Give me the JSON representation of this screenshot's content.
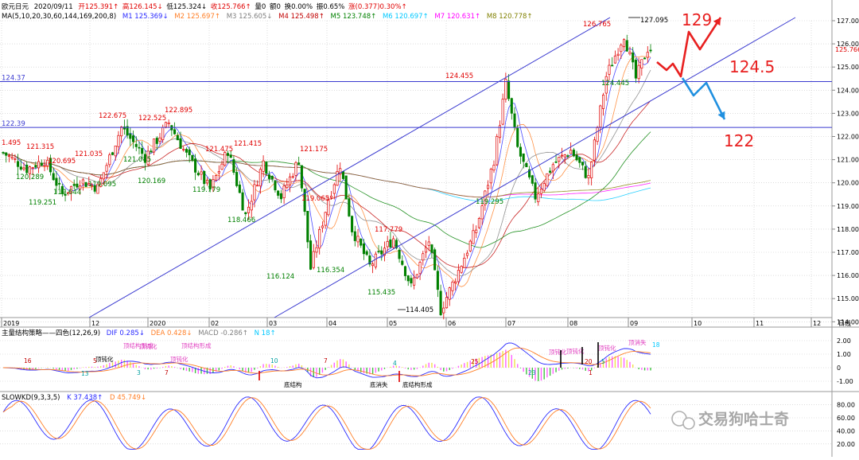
{
  "header": {
    "symbol": "欧元日元",
    "date": "2020/09/11",
    "open": "开125.391↑",
    "high": "高126.145↓",
    "low": "低125.324↓",
    "close": "收125.766↑",
    "volume": "量0",
    "amount": "额0",
    "turnover": "换0.00%",
    "amplitude": "振0.65%",
    "change": "涨(0.377)0.30%↑"
  },
  "ma_legend": {
    "title": "MA(5,10,20,30,60,144,169,200,8)",
    "items": [
      {
        "label": "M1 125.369↓",
        "color": "#2a2aff"
      },
      {
        "label": "M2 125.697↑",
        "color": "#ff7f27"
      },
      {
        "label": "M3 125.605↓",
        "color": "#808080"
      },
      {
        "label": "M4 125.498↑",
        "color": "#c00000"
      },
      {
        "label": "M5 123.748↑",
        "color": "#008000"
      },
      {
        "label": "M6 120.697↑",
        "color": "#00c8ff"
      },
      {
        "label": "M7 120.631↑",
        "color": "#ff00ff"
      },
      {
        "label": "M8 120.778↑",
        "color": "#808000"
      }
    ]
  },
  "macd_legend": {
    "title": "主量结构策略——四色(12,26,9)",
    "items": [
      {
        "label": "DIF 0.285↓",
        "color": "#2a2aff"
      },
      {
        "label": "DEA 0.428↓",
        "color": "#ff7f27"
      },
      {
        "label": "MACD -0.286↑",
        "color": "#808080"
      },
      {
        "label": "N 18↑",
        "color": "#00c8ff"
      }
    ],
    "annotations": [
      "顶结构形成",
      "顶钝化",
      "顶结构形成",
      "顶钝化",
      "顶钝化",
      "底结构",
      "底消失",
      "底结构形成",
      "顶钝化",
      "顶钝化",
      "顶钝化",
      "顶消失"
    ],
    "counters": [
      "16",
      "13",
      "5",
      "3",
      "7",
      "10",
      "7",
      "4",
      "25",
      "23",
      "20",
      "5",
      "1",
      "18"
    ]
  },
  "kd_legend": {
    "title": "SLOWKD(9,3,3,5)",
    "items": [
      {
        "label": "K 37.438↑",
        "color": "#2a2aff"
      },
      {
        "label": "D 45.749↓",
        "color": "#ff7f27"
      }
    ]
  },
  "price_axis": [
    "127.000",
    "126.000",
    "125.000",
    "124.000",
    "123.000",
    "122.000",
    "121.000",
    "120.000",
    "119.000",
    "118.000",
    "117.000",
    "116.000",
    "115.000",
    "114.000"
  ],
  "current_price": "125.766",
  "macd_axis": [
    "2.00",
    "1.00",
    "0",
    "-1.00"
  ],
  "kd_axis": [
    "80.00",
    "60.00",
    "40.00",
    "20.00"
  ],
  "time_axis": [
    "2019",
    "12",
    "2020",
    "02",
    "03",
    "04",
    "05",
    "06",
    "07",
    "08",
    "09",
    "10",
    "11",
    "12",
    "日线"
  ],
  "levels": [
    {
      "label": "124.37",
      "value": 124.37
    },
    {
      "label": "122.39",
      "value": 122.39
    }
  ],
  "price_annotations": [
    {
      "text": "127.095",
      "color": "#000000"
    },
    {
      "text": "126.765",
      "color": "#e00000"
    },
    {
      "text": "124.455",
      "color": "#e00000"
    },
    {
      "text": "124.445",
      "color": "#008000"
    },
    {
      "text": "122.895",
      "color": "#e00000"
    },
    {
      "text": "122.675",
      "color": "#e00000"
    },
    {
      "text": "122.525",
      "color": "#e00000"
    },
    {
      "text": "121.475",
      "color": "#e00000"
    },
    {
      "text": "121.415",
      "color": "#e00000"
    },
    {
      "text": "121.175",
      "color": "#e00000"
    },
    {
      "text": "121.045",
      "color": "#008000"
    },
    {
      "text": "121.035",
      "color": "#e00000"
    },
    {
      "text": "121.315",
      "color": "#e00000"
    },
    {
      "text": "1.495",
      "color": "#e00000"
    },
    {
      "text": "120.695",
      "color": "#e00000"
    },
    {
      "text": "120.289",
      "color": "#008000"
    },
    {
      "text": "120.169",
      "color": "#008000"
    },
    {
      "text": "119.095",
      "color": "#008000"
    },
    {
      "text": "119.779",
      "color": "#008000"
    },
    {
      "text": "119.644",
      "color": "#008000"
    },
    {
      "text": "119.251",
      "color": "#008000"
    },
    {
      "text": "119.065",
      "color": "#e00000"
    },
    {
      "text": "119.295",
      "color": "#008000"
    },
    {
      "text": "118.466",
      "color": "#008000"
    },
    {
      "text": "117.779",
      "color": "#e00000"
    },
    {
      "text": "116.354",
      "color": "#008000"
    },
    {
      "text": "116.124",
      "color": "#008000"
    },
    {
      "text": "115.435",
      "color": "#008000"
    },
    {
      "text": "114.405",
      "color": "#000000"
    }
  ],
  "forecast_labels": [
    {
      "text": "129",
      "color": "#e82020"
    },
    {
      "text": "124.5",
      "color": "#e82020"
    },
    {
      "text": "122",
      "color": "#e82020"
    }
  ],
  "watermark": "交易狗哈士奇",
  "colors": {
    "up": "#e00000",
    "down": "#008000",
    "channel": "#3a3ad0",
    "forecast_up": "#e82020",
    "forecast_down": "#2090e0",
    "grid": "#c8c8c8"
  },
  "chart_data": [
    {
      "type": "candlestick",
      "title": "欧元日元 日线",
      "y_axis": {
        "min": 114.0,
        "max": 127.0,
        "ticks": [
          127,
          126,
          125,
          124,
          123,
          122,
          121,
          120,
          119,
          118,
          117,
          116,
          115,
          114
        ]
      },
      "x_months": [
        "2019-11",
        "2019-12",
        "2020-01",
        "2020-02",
        "2020-03",
        "2020-04",
        "2020-05",
        "2020-06",
        "2020-07",
        "2020-08",
        "2020-09"
      ],
      "close_path": [
        {
          "month": "2019-11",
          "value": 120.5
        },
        {
          "month": "2019-12",
          "value": 121.0
        },
        {
          "month": "2020-01",
          "value": 122.4
        },
        {
          "month": "2020-02",
          "value": 119.5
        },
        {
          "month": "2020-03",
          "value": 117.8
        },
        {
          "month": "2020-04",
          "value": 116.4
        },
        {
          "month": "2020-05",
          "value": 115.2
        },
        {
          "month": "2020-06",
          "value": 122.0
        },
        {
          "month": "2020-07",
          "value": 122.5
        },
        {
          "month": "2020-08",
          "value": 125.8
        },
        {
          "month": "2020-09",
          "value": 125.766
        }
      ],
      "horizontal_levels": [
        124.37,
        122.39
      ],
      "forecast": {
        "up_target": 129,
        "pivot": 124.5,
        "down_target": 122
      }
    },
    {
      "type": "bar",
      "title": "主量结构策略——四色(12,26,9)",
      "y_axis": {
        "min": -1.2,
        "max": 2.4,
        "ticks": [
          2,
          1,
          0,
          -1
        ]
      },
      "series": [
        {
          "name": "DIF",
          "last": 0.285
        },
        {
          "name": "DEA",
          "last": 0.428
        },
        {
          "name": "MACD",
          "last": -0.286
        }
      ]
    },
    {
      "type": "line",
      "title": "SLOWKD(9,3,3,5)",
      "y_axis": {
        "min": 10,
        "max": 95,
        "ticks": [
          80,
          60,
          40,
          20
        ]
      },
      "series": [
        {
          "name": "K",
          "last": 37.438
        },
        {
          "name": "D",
          "last": 45.749
        }
      ]
    }
  ]
}
